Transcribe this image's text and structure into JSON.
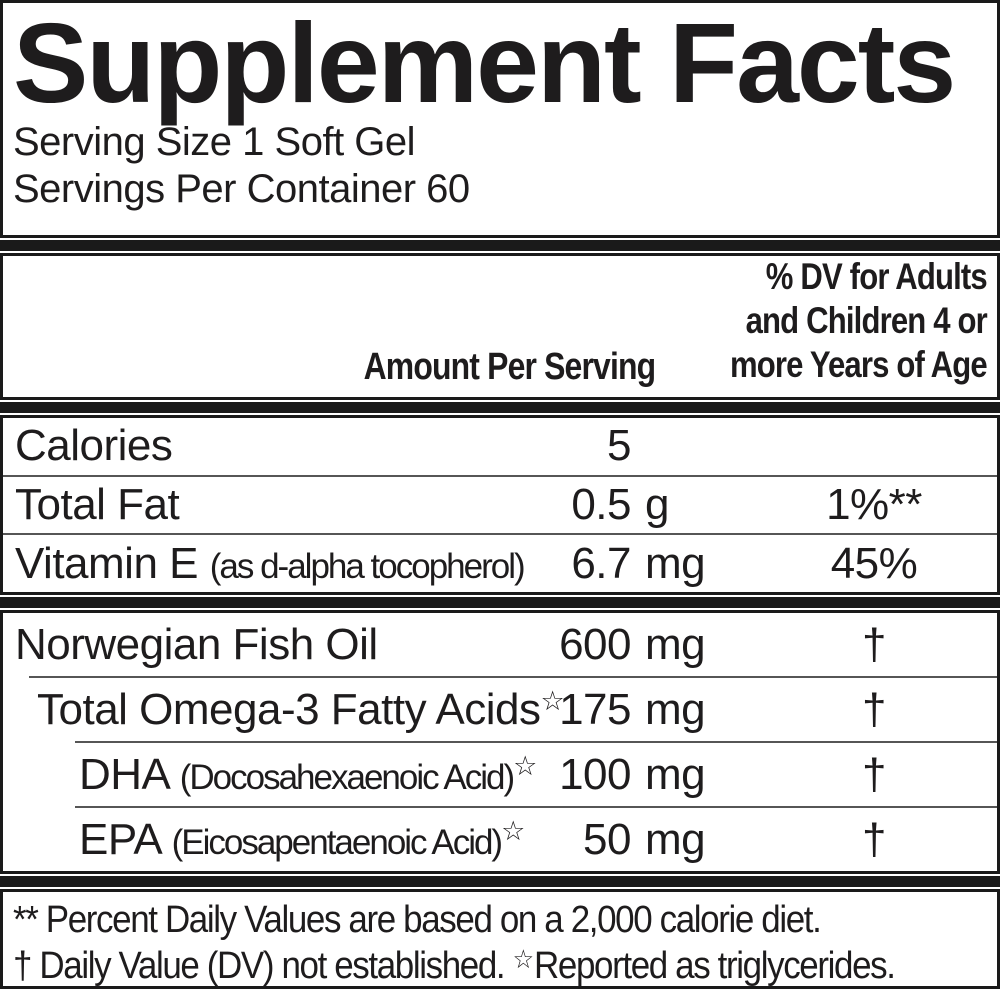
{
  "colors": {
    "ink": "#1e1c1d",
    "bar": "#1a1a1a",
    "divider": "#565656",
    "background": "#ffffff"
  },
  "title": "Supplement Facts",
  "serving": {
    "size": "Serving Size 1 Soft Gel",
    "per_container": "Servings Per Container 60"
  },
  "header": {
    "amount": "Amount Per Serving",
    "dv_line1": "% DV for Adults",
    "dv_line2": "and Children 4 or",
    "dv_line3": "more Years of Age"
  },
  "nutrients": [
    {
      "name": "Calories",
      "num": "5",
      "unit": "",
      "dv": ""
    },
    {
      "name": "Total Fat",
      "num": "0.5",
      "unit": "g",
      "dv": "1%**"
    },
    {
      "name": "Vitamin E",
      "note": "(as d-alpha tocopherol)",
      "num": "6.7",
      "unit": "mg",
      "dv": "45%"
    }
  ],
  "ingredients": [
    {
      "name": "Norwegian Fish Oil",
      "num": "600",
      "unit": "mg",
      "dv": "†"
    },
    {
      "name": "Total Omega-3 Fatty Acids",
      "mark": "☆",
      "num": "175",
      "unit": "mg",
      "dv": "†"
    },
    {
      "name": "DHA",
      "note": "(Docosahexaenoic Acid)",
      "mark": "☆",
      "num": "100",
      "unit": "mg",
      "dv": "†"
    },
    {
      "name": "EPA",
      "note": "(Eicosapentaenoic Acid)",
      "mark": "☆",
      "num": "50",
      "unit": "mg",
      "dv": "†"
    }
  ],
  "footnotes": {
    "line1": "** Percent Daily Values are based on a 2,000 calorie diet.",
    "line2_pre": "† Daily Value (DV) not established. ",
    "line2_star": "☆",
    "line2_post": "Reported as triglycerides."
  }
}
